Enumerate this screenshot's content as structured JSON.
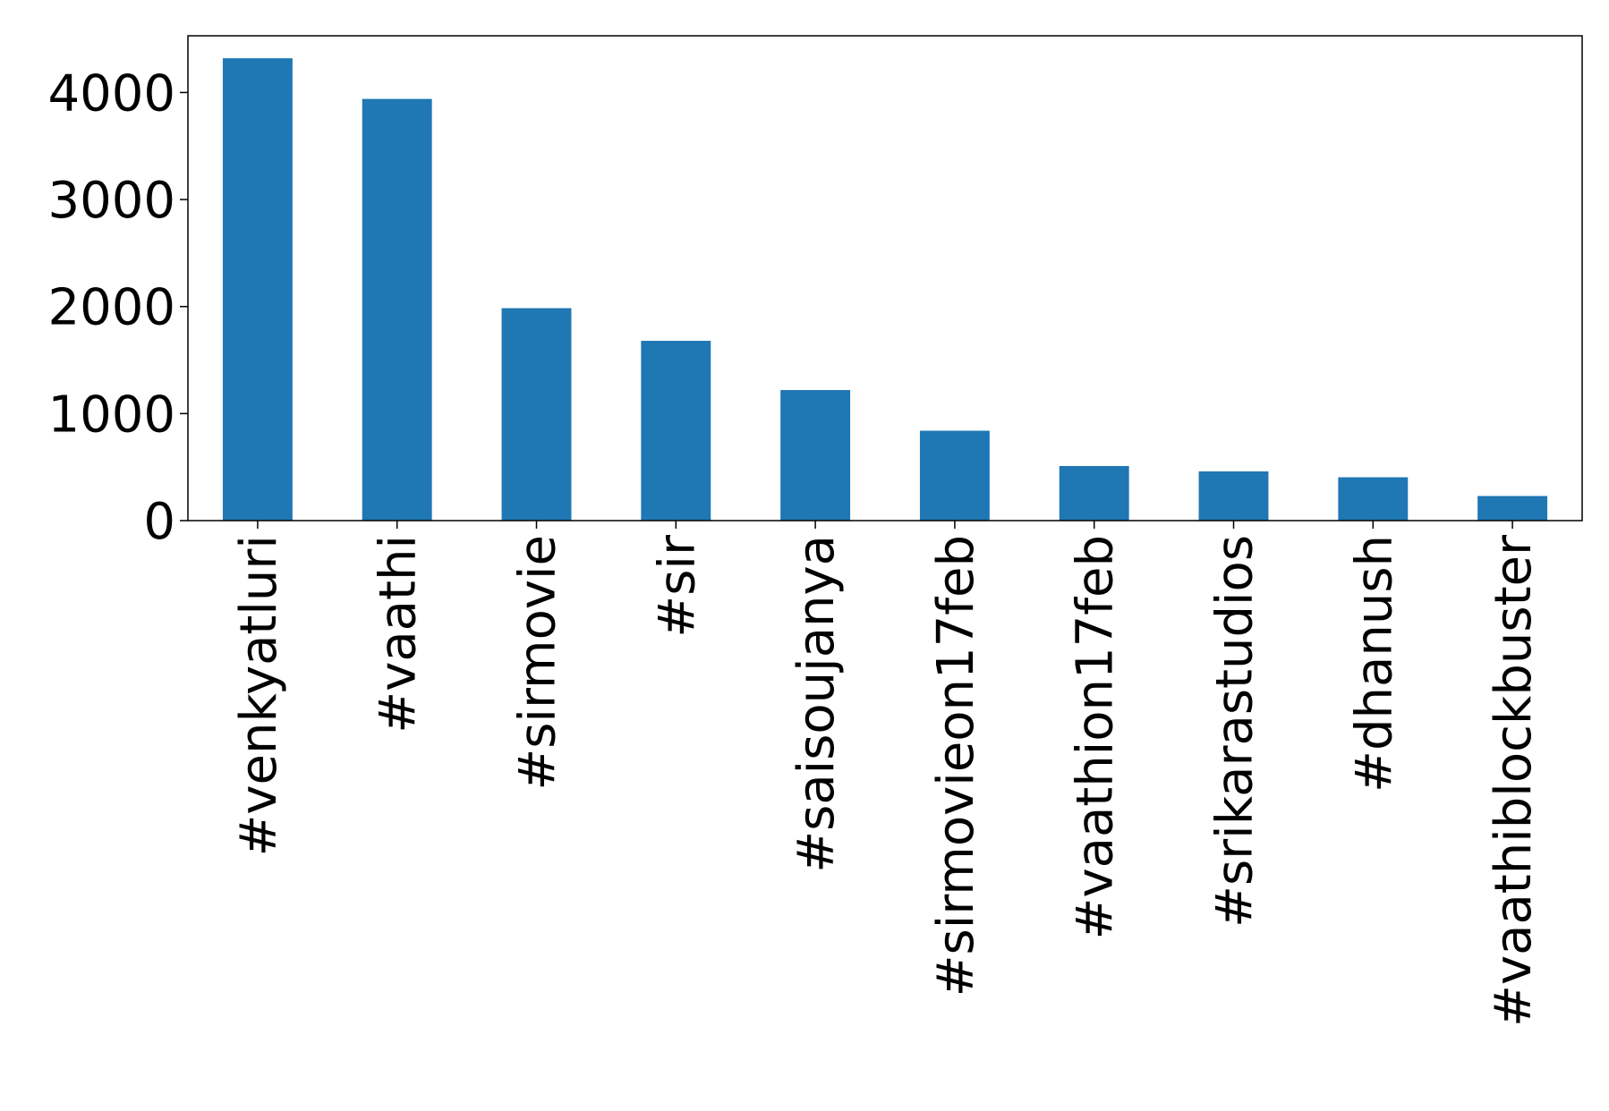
{
  "chart_data": {
    "type": "bar",
    "categories": [
      "#venkyatluri",
      "#vaathi",
      "#sirmovie",
      "#sir",
      "#saisoujanya",
      "#sirmovieon17feb",
      "#vaathion17feb",
      "#srikarastudios",
      "#dhanush",
      "#vaathiblockbuster"
    ],
    "values": [
      4320,
      3940,
      1985,
      1680,
      1220,
      840,
      510,
      460,
      405,
      230
    ],
    "color": "#1f77b4",
    "ylim": [
      0,
      4530
    ],
    "yticks": [
      0,
      1000,
      2000,
      3000,
      4000
    ],
    "grid": false
  }
}
